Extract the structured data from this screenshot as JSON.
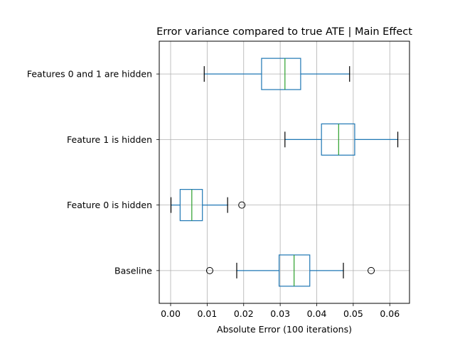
{
  "chart_data": {
    "type": "boxplot",
    "orientation": "horizontal",
    "title": "Error variance compared to true ATE | Main Effect",
    "xlabel": "Absolute Error (100 iterations)",
    "ylabel": "",
    "xlim": [
      -0.003,
      0.065
    ],
    "grid": true,
    "x_ticks": [
      0.0,
      0.01,
      0.02,
      0.03,
      0.04,
      0.05,
      0.06
    ],
    "x_tick_labels": [
      "0.00",
      "0.01",
      "0.02",
      "0.03",
      "0.04",
      "0.05",
      "0.06"
    ],
    "categories": [
      "Baseline",
      "Feature 0 is hidden",
      "Feature 1 is hidden",
      "Features 0 and 1 are hidden"
    ],
    "boxes": [
      {
        "label": "Baseline",
        "whisker_low": 0.0181,
        "q1": 0.0297,
        "median": 0.0338,
        "q3": 0.0381,
        "whisker_high": 0.0473,
        "outliers": [
          0.0107,
          0.0549
        ]
      },
      {
        "label": "Feature 0 is hidden",
        "whisker_low": 0.0001,
        "q1": 0.0026,
        "median": 0.0058,
        "q3": 0.0087,
        "whisker_high": 0.0156,
        "outliers": [
          0.0195
        ]
      },
      {
        "label": "Feature 1 is hidden",
        "whisker_low": 0.0313,
        "q1": 0.0413,
        "median": 0.046,
        "q3": 0.0504,
        "whisker_high": 0.0622,
        "outliers": []
      },
      {
        "label": "Features 0 and 1 are hidden",
        "whisker_low": 0.0092,
        "q1": 0.0249,
        "median": 0.0313,
        "q3": 0.0356,
        "whisker_high": 0.049,
        "outliers": []
      }
    ],
    "colors": {
      "box": "#1f77b4",
      "median": "#2ca02c",
      "whisker_cap": "#000000",
      "grid": "#b0b0b0"
    }
  }
}
